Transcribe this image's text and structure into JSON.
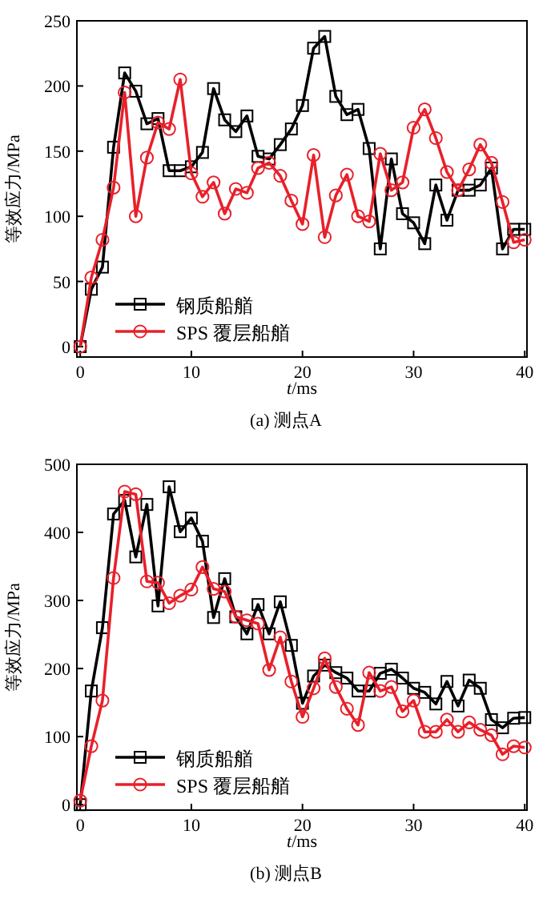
{
  "chart_data": [
    {
      "type": "line",
      "title": "(a) 测点A",
      "xlabel": "t/ms",
      "ylabel": "等效应力/MPa",
      "x": [
        0,
        1,
        2,
        3,
        4,
        5,
        6,
        7,
        8,
        9,
        10,
        11,
        12,
        13,
        14,
        15,
        16,
        17,
        18,
        19,
        20,
        21,
        22,
        23,
        24,
        25,
        26,
        27,
        28,
        29,
        30,
        31,
        32,
        33,
        34,
        35,
        36,
        37,
        38,
        39,
        40
      ],
      "xlim": [
        -0.3,
        40.2
      ],
      "ylim": [
        -8,
        250
      ],
      "xticks": [
        0,
        10,
        20,
        30,
        40
      ],
      "yticks": [
        0,
        50,
        100,
        150,
        200,
        250
      ],
      "legend": "bottom left",
      "grid": false,
      "series": [
        {
          "name": "钢质船艏",
          "color": "#000000",
          "marker": "square",
          "values": [
            0,
            44,
            61,
            153,
            210,
            196,
            171,
            175,
            135,
            135,
            138,
            149,
            198,
            174,
            165,
            177,
            146,
            144,
            155,
            167,
            185,
            229,
            238,
            192,
            178,
            182,
            152,
            75,
            144,
            102,
            95,
            79,
            124,
            97,
            120,
            120,
            124,
            137,
            75,
            90,
            90
          ]
        },
        {
          "name": "SPS 覆层船艏",
          "color": "#e8202a",
          "marker": "circle",
          "values": [
            0,
            53,
            82,
            122,
            195,
            100,
            145,
            172,
            167,
            205,
            133,
            115,
            126,
            102,
            121,
            118,
            137,
            141,
            131,
            112,
            94,
            147,
            84,
            116,
            132,
            100,
            96,
            148,
            120,
            126,
            168,
            182,
            160,
            134,
            120,
            136,
            155,
            141,
            111,
            80,
            82
          ]
        }
      ]
    },
    {
      "type": "line",
      "title": "(b) 测点B",
      "xlabel": "t/ms",
      "ylabel": "等效应力/MPa",
      "x": [
        0,
        1,
        2,
        3,
        4,
        5,
        6,
        7,
        8,
        9,
        10,
        11,
        12,
        13,
        14,
        15,
        16,
        17,
        18,
        19,
        20,
        21,
        22,
        23,
        24,
        25,
        26,
        27,
        28,
        29,
        30,
        31,
        32,
        33,
        34,
        35,
        36,
        37,
        38,
        39,
        40
      ],
      "xlim": [
        -0.3,
        40.2
      ],
      "ylim": [
        -8,
        500
      ],
      "xticks": [
        0,
        10,
        20,
        30,
        40
      ],
      "yticks": [
        0,
        100,
        200,
        300,
        400,
        500
      ],
      "legend": "bottom left",
      "grid": false,
      "series": [
        {
          "name": "钢质船艏",
          "color": "#000000",
          "marker": "square",
          "values": [
            0,
            167,
            260,
            427,
            447,
            364,
            441,
            292,
            467,
            401,
            421,
            387,
            275,
            332,
            276,
            251,
            294,
            251,
            298,
            234,
            149,
            189,
            205,
            194,
            186,
            167,
            167,
            193,
            199,
            186,
            171,
            165,
            148,
            181,
            145,
            183,
            171,
            125,
            113,
            127,
            128
          ]
        },
        {
          "name": "SPS 覆层船艏",
          "color": "#e8202a",
          "marker": "circle",
          "values": [
            6,
            86,
            153,
            333,
            460,
            456,
            328,
            326,
            296,
            307,
            316,
            349,
            317,
            313,
            276,
            271,
            266,
            198,
            246,
            181,
            129,
            171,
            215,
            173,
            141,
            117,
            194,
            167,
            173,
            137,
            153,
            107,
            107,
            125,
            107,
            121,
            110,
            102,
            74,
            86,
            84
          ]
        }
      ]
    }
  ]
}
